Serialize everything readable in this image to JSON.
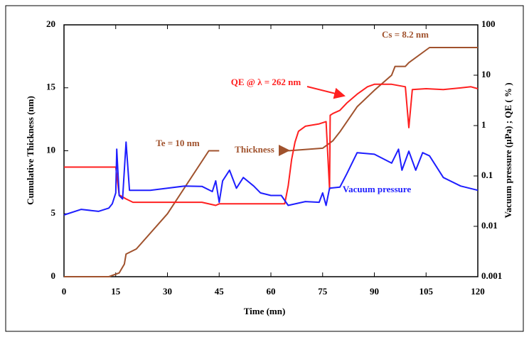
{
  "chart_data": {
    "type": "line",
    "xlabel": "Time (mn)",
    "ylabel": "Cumulative Thickness (nm)",
    "y2label": "Vacuum pressure (µPa) ; QE ( % )",
    "xlim": [
      0,
      120
    ],
    "xticks": [
      0,
      15,
      30,
      45,
      60,
      75,
      90,
      105,
      120
    ],
    "ylim": [
      0,
      20
    ],
    "yticks": [
      0,
      5,
      10,
      15,
      20
    ],
    "y2lim": [
      0.001,
      100
    ],
    "y2ticks": [
      0.001,
      0.01,
      0.1,
      1,
      10,
      100
    ],
    "y2scale": "log",
    "series": [
      {
        "name": "Thickness",
        "color": "#a0522d",
        "x": [
          0,
          13,
          16,
          17.5,
          18,
          21,
          30,
          42,
          45,
          55,
          65,
          75,
          78,
          80,
          85,
          90,
          95,
          96,
          99,
          100,
          105,
          106,
          120
        ],
        "values": [
          0,
          0,
          0.3,
          1,
          1.8,
          2.2,
          5,
          10,
          10,
          null,
          10,
          10.2,
          10.8,
          11.5,
          13.5,
          14.8,
          16,
          16.7,
          16.7,
          17,
          18,
          18.2,
          18.2
        ]
      },
      {
        "name": "QE @ λ = 262 nm",
        "color": "#ff2020",
        "axis": "y2",
        "x": [
          0,
          15,
          16,
          18,
          20,
          40,
          44,
          45,
          50,
          64,
          65,
          66,
          67,
          68,
          70,
          74,
          76,
          77,
          77.2,
          78,
          80,
          82,
          85,
          88,
          90,
          95,
          99,
          100,
          101,
          105,
          110,
          115,
          118,
          120
        ],
        "values": [
          0.15,
          0.15,
          0.042,
          0.035,
          0.03,
          0.03,
          0.026,
          0.028,
          0.028,
          0.028,
          0.063,
          0.21,
          0.47,
          0.77,
          0.97,
          1.08,
          1.2,
          0.054,
          1.6,
          1.74,
          2.0,
          2.8,
          4.2,
          5.9,
          6.6,
          6.6,
          5.9,
          0.91,
          5.2,
          5.4,
          5.2,
          5.6,
          5.9,
          5.4
        ]
      },
      {
        "name": "Vacuum pressure",
        "color": "#1e1eff",
        "axis": "y2",
        "x": [
          0,
          5,
          10,
          13,
          14,
          15,
          15.3,
          16,
          17,
          18,
          19,
          25,
          30,
          35,
          40,
          43,
          44,
          45,
          46,
          48,
          50,
          52,
          55,
          57,
          60,
          63,
          65,
          70,
          74,
          75,
          76,
          77,
          80,
          82,
          85,
          90,
          95,
          97,
          98,
          100,
          102,
          104,
          106,
          110,
          115,
          120
        ],
        "values": [
          0.0168,
          0.0217,
          0.0198,
          0.023,
          0.028,
          0.046,
          0.34,
          0.041,
          0.035,
          0.47,
          0.052,
          0.052,
          0.057,
          0.063,
          0.062,
          0.049,
          0.08,
          0.03,
          0.08,
          0.13,
          0.057,
          0.093,
          0.063,
          0.046,
          0.041,
          0.041,
          0.026,
          0.031,
          0.03,
          0.046,
          0.026,
          0.057,
          0.06,
          0.11,
          0.29,
          0.27,
          0.18,
          0.34,
          0.13,
          0.31,
          0.13,
          0.29,
          0.25,
          0.093,
          0.063,
          0.052
        ]
      }
    ],
    "annotations": [
      {
        "text": "Te = 10 nm",
        "color": "#a0522d"
      },
      {
        "text": "Cs = 8.2 nm",
        "color": "#a0522d"
      },
      {
        "text": "QE @ λ = 262 nm",
        "color": "#ff2020"
      },
      {
        "text": "Thickness",
        "color": "#a0522d"
      },
      {
        "text": "Vacuum pressure",
        "color": "#1e1eff"
      }
    ]
  }
}
